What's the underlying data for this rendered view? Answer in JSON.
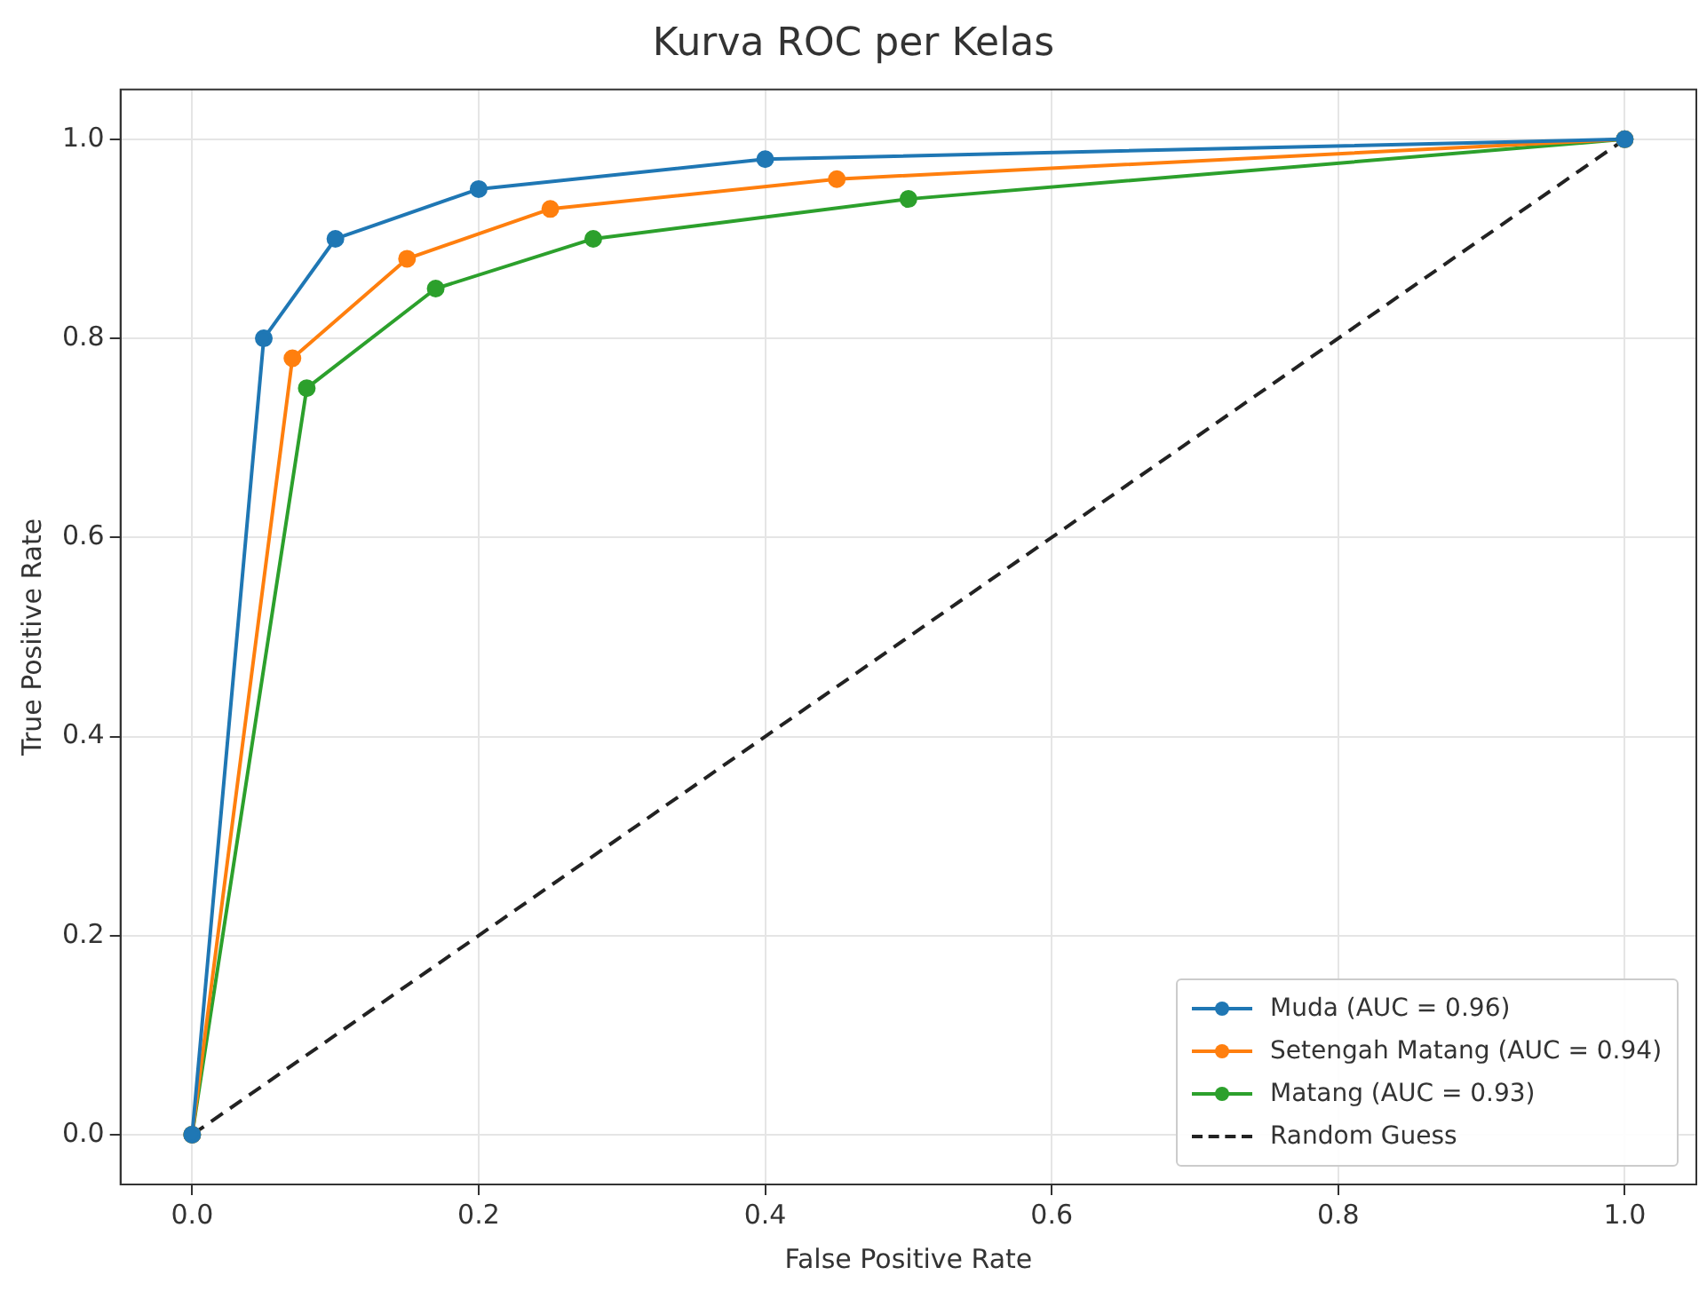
{
  "chart_data": {
    "type": "line",
    "title": "Kurva ROC per Kelas",
    "xlabel": "False Positive Rate",
    "ylabel": "True Positive Rate",
    "xlim": [
      -0.05,
      1.05
    ],
    "ylim": [
      -0.05,
      1.05
    ],
    "xticks": [
      {
        "value": 0,
        "label": "0.0"
      },
      0.2,
      0.4,
      0.6,
      0.8,
      {
        "value": 1,
        "label": "1.0"
      }
    ],
    "yticks": [
      {
        "value": 0,
        "label": "0.0"
      },
      0.2,
      0.4,
      0.6,
      0.8,
      {
        "value": 1,
        "label": "1.0"
      }
    ],
    "grid": true,
    "legend": "bottom right",
    "series": [
      {
        "name": "Muda (AUC = 0.96)",
        "color": "#1f77b4",
        "marker": "circle",
        "line_style": "solid",
        "x": [
          0,
          0.05,
          0.1,
          0.2,
          0.4,
          1
        ],
        "values": [
          0,
          0.8,
          0.9,
          0.95,
          0.98,
          1
        ]
      },
      {
        "name": "Setengah Matang (AUC = 0.94)",
        "color": "#ff7f0e",
        "marker": "circle",
        "line_style": "solid",
        "x": [
          0,
          0.07,
          0.15,
          0.25,
          0.45,
          1
        ],
        "values": [
          0,
          0.78,
          0.88,
          0.93,
          0.96,
          1
        ]
      },
      {
        "name": "Matang (AUC = 0.93)",
        "color": "#2ca02c",
        "marker": "circle",
        "line_style": "solid",
        "x": [
          0,
          0.08,
          0.17,
          0.28,
          0.5,
          1
        ],
        "values": [
          0,
          0.75,
          0.85,
          0.9,
          0.94,
          1
        ]
      },
      {
        "name": "Random Guess",
        "color": "#222222",
        "marker": "none",
        "line_style": "dashed",
        "x": [
          0,
          1
        ],
        "values": [
          0,
          1
        ]
      }
    ]
  }
}
